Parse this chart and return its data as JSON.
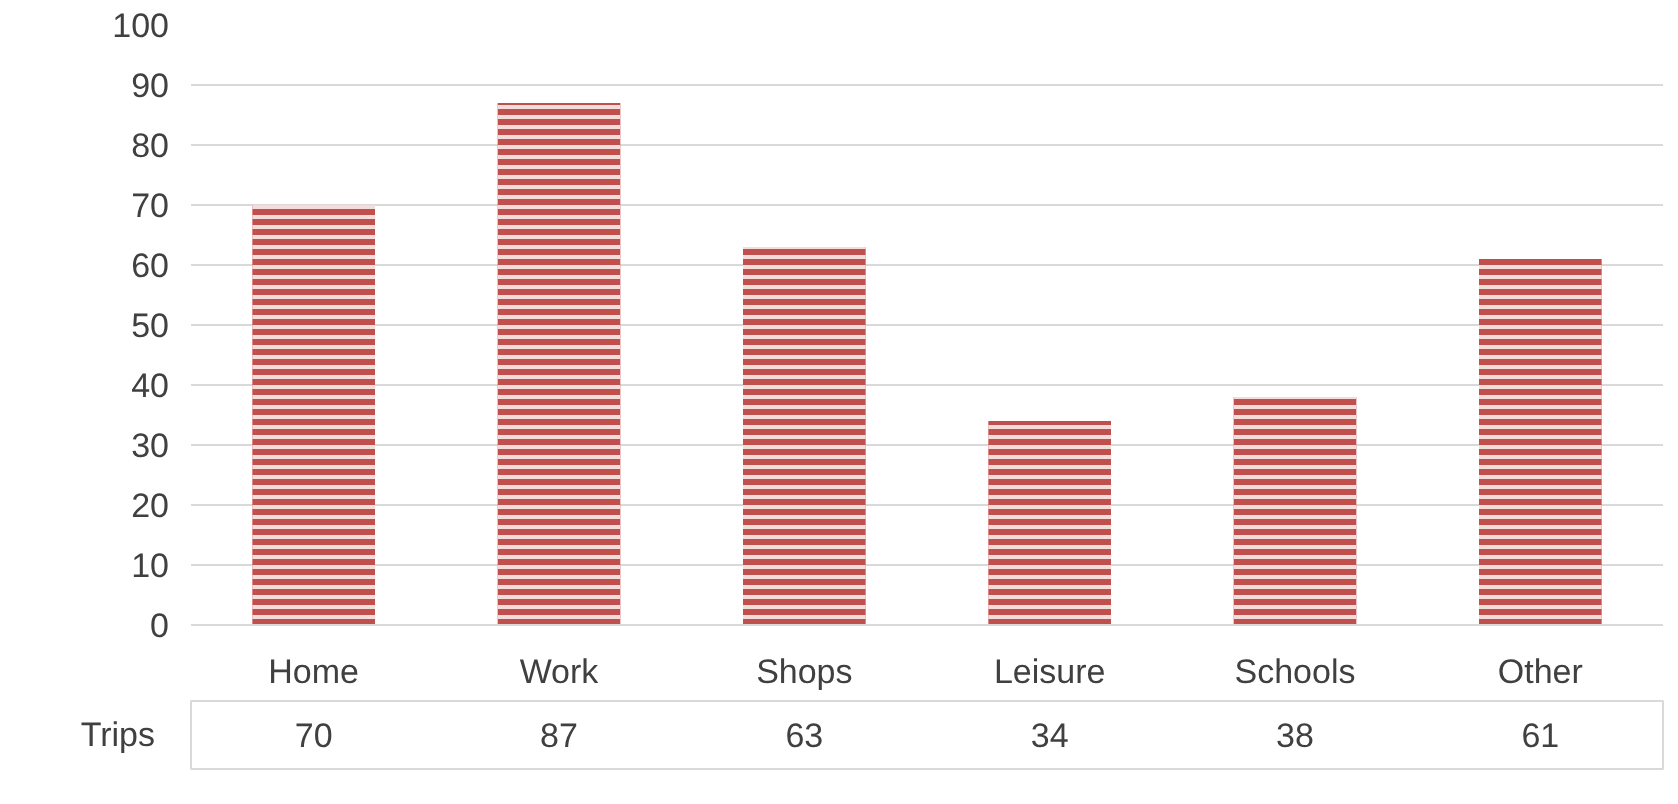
{
  "chart_data": {
    "type": "bar",
    "categories": [
      "Home",
      "Work",
      "Shops",
      "Leisure",
      "Schools",
      "Other"
    ],
    "series": [
      {
        "name": "Trips",
        "color": "#c0504d",
        "values": [
          70,
          87,
          63,
          34,
          38,
          61
        ]
      }
    ],
    "ylim": [
      0,
      100
    ],
    "yticks": [
      0,
      10,
      20,
      30,
      40,
      50,
      60,
      70,
      80,
      90,
      100
    ],
    "grid": "y",
    "data_labels": true
  }
}
